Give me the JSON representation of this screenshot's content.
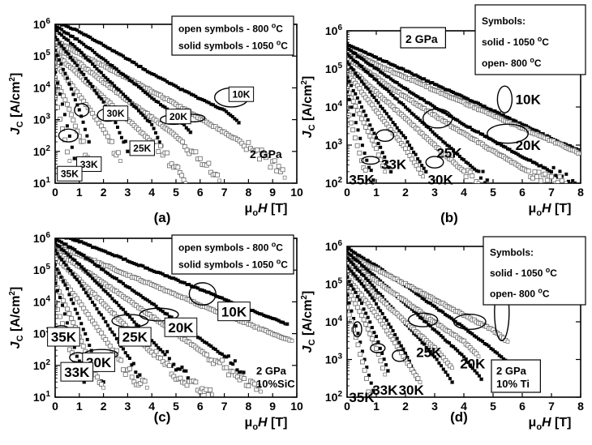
{
  "chart_data": [
    {
      "id": "a",
      "type": "scatter",
      "panel_label": "(a)",
      "condition": [
        "2 GPa"
      ],
      "condition_boxed": false,
      "legend": [
        "open symbols - 800 oC",
        "solid symbols - 1050 oC"
      ],
      "ylabel": "J_C [A/cm^2]",
      "xlabel": "μ_oH [T]",
      "xlim": [
        0,
        10
      ],
      "ylim": [
        10,
        1000000
      ],
      "y_scale": "log",
      "xticks": [
        0,
        1,
        2,
        3,
        4,
        5,
        6,
        7,
        8,
        9,
        10
      ],
      "yticks": [
        1,
        2,
        3,
        4,
        5,
        6
      ],
      "series": [
        {
          "temp": "10K",
          "anneal": "1050",
          "x": [
            0,
            1,
            2,
            3,
            4,
            5,
            6,
            7,
            7.6
          ],
          "y": [
            1200000,
            600000,
            220000,
            80000,
            28000,
            11000,
            4500,
            2000,
            800
          ]
        },
        {
          "temp": "10K",
          "anneal": "800",
          "x": [
            0,
            1,
            2,
            3,
            4,
            5,
            6,
            7,
            8,
            9,
            9.5
          ],
          "y": [
            300000,
            120000,
            50000,
            20000,
            8000,
            3000,
            1100,
            400,
            150,
            40,
            15
          ]
        },
        {
          "temp": "20K",
          "anneal": "1050",
          "x": [
            0,
            1,
            2,
            3,
            4,
            5,
            5.6
          ],
          "y": [
            900000,
            300000,
            80000,
            20000,
            5000,
            1300,
            400
          ]
        },
        {
          "temp": "20K",
          "anneal": "800",
          "x": [
            0,
            1,
            2,
            3,
            4,
            5,
            6,
            6.8
          ],
          "y": [
            200000,
            60000,
            15000,
            4000,
            1200,
            300,
            60,
            12
          ]
        },
        {
          "temp": "25K",
          "anneal": "1050",
          "x": [
            0,
            1,
            2,
            3,
            4,
            4.4
          ],
          "y": [
            700000,
            150000,
            25000,
            4500,
            700,
            150
          ]
        },
        {
          "temp": "25K",
          "anneal": "800",
          "x": [
            0,
            1,
            2,
            3,
            4,
            5,
            5.4
          ],
          "y": [
            120000,
            25000,
            5000,
            1000,
            200,
            30,
            10
          ]
        },
        {
          "temp": "30K",
          "anneal": "1050",
          "x": [
            0,
            1,
            2,
            2.5,
            3
          ],
          "y": [
            400000,
            40000,
            3500,
            800,
            100
          ]
        },
        {
          "temp": "30K",
          "anneal": "800",
          "x": [
            0,
            1,
            2,
            2.7
          ],
          "y": [
            60000,
            6000,
            500,
            50
          ]
        },
        {
          "temp": "33K",
          "anneal": "1050",
          "x": [
            0,
            0.5,
            1,
            1.4
          ],
          "y": [
            150000,
            20000,
            2000,
            200
          ]
        },
        {
          "temp": "33K",
          "anneal": "800",
          "x": [
            0,
            0.5,
            1,
            1.5
          ],
          "y": [
            20000,
            3000,
            300,
            30
          ]
        },
        {
          "temp": "35K",
          "anneal": "1050",
          "x": [
            0,
            0.3,
            0.6,
            0.8
          ],
          "y": [
            30000,
            3000,
            300,
            60
          ]
        },
        {
          "temp": "35K",
          "anneal": "800",
          "x": [
            0,
            0.3,
            0.6
          ],
          "y": [
            5000,
            500,
            50
          ]
        }
      ],
      "annotations": [
        "10K",
        "20K",
        "25K",
        "30K",
        "33K",
        "35K"
      ]
    },
    {
      "id": "b",
      "type": "scatter",
      "panel_label": "(b)",
      "condition": [
        "2 GPa"
      ],
      "condition_boxed": true,
      "legend": [
        "Symbols:",
        "solid - 1050 oC",
        "open- 800 oC"
      ],
      "ylabel": "J_C [A/cm^2]",
      "xlabel": "μ_oH [T]",
      "xlim": [
        0,
        8
      ],
      "ylim": [
        100,
        1000000
      ],
      "y_scale": "log",
      "xticks": [
        0,
        1,
        2,
        3,
        4,
        5,
        6,
        7,
        8
      ],
      "yticks": [
        2,
        3,
        4,
        5,
        6
      ],
      "series": [
        {
          "temp": "10K",
          "anneal": "1050",
          "x": [
            0,
            1,
            2,
            3,
            4,
            5,
            6,
            7,
            8
          ],
          "y": [
            450000,
            200000,
            90000,
            40000,
            18000,
            8000,
            3500,
            1500,
            700
          ]
        },
        {
          "temp": "10K",
          "anneal": "800",
          "x": [
            0,
            1,
            2,
            3,
            4,
            5,
            6,
            7,
            8
          ],
          "y": [
            300000,
            130000,
            60000,
            28000,
            13000,
            6000,
            2800,
            1300,
            600
          ]
        },
        {
          "temp": "20K",
          "anneal": "1050",
          "x": [
            0,
            1,
            2,
            3,
            4,
            5,
            6,
            7,
            7.8
          ],
          "y": [
            350000,
            100000,
            30000,
            10000,
            3500,
            1300,
            500,
            200,
            100
          ]
        },
        {
          "temp": "20K",
          "anneal": "800",
          "x": [
            0,
            1,
            2,
            3,
            4,
            5,
            6,
            7,
            7.5
          ],
          "y": [
            200000,
            60000,
            18000,
            6000,
            2000,
            700,
            250,
            110,
            100
          ]
        },
        {
          "temp": "25K",
          "anneal": "1050",
          "x": [
            0,
            1,
            2,
            3,
            4,
            4.8
          ],
          "y": [
            250000,
            50000,
            10000,
            2000,
            400,
            120
          ]
        },
        {
          "temp": "25K",
          "anneal": "800",
          "x": [
            0,
            1,
            2,
            3,
            4,
            4.5
          ],
          "y": [
            120000,
            25000,
            5000,
            1000,
            200,
            100
          ]
        },
        {
          "temp": "30K",
          "anneal": "1050",
          "x": [
            0,
            1,
            2,
            2.7
          ],
          "y": [
            150000,
            15000,
            1500,
            200
          ]
        },
        {
          "temp": "30K",
          "anneal": "800",
          "x": [
            0,
            1,
            2,
            2.6
          ],
          "y": [
            80000,
            8000,
            800,
            150
          ]
        },
        {
          "temp": "33K",
          "anneal": "1050",
          "x": [
            0,
            0.5,
            1,
            1.5
          ],
          "y": [
            60000,
            10000,
            1500,
            200
          ]
        },
        {
          "temp": "33K",
          "anneal": "800",
          "x": [
            0,
            0.5,
            1,
            1.3
          ],
          "y": [
            30000,
            5000,
            800,
            200
          ]
        },
        {
          "temp": "35K",
          "anneal": "1050",
          "x": [
            0,
            0.3,
            0.6,
            0.9
          ],
          "y": [
            25000,
            4000,
            600,
            120
          ]
        },
        {
          "temp": "35K",
          "anneal": "800",
          "x": [
            0,
            0.2,
            0.5,
            0.7
          ],
          "y": [
            10000,
            2500,
            400,
            100
          ]
        }
      ],
      "annotations": [
        "10K",
        "20K",
        "25K",
        "30K",
        "33K",
        "35K"
      ]
    },
    {
      "id": "c",
      "type": "scatter",
      "panel_label": "(c)",
      "condition": [
        "2 GPa",
        "10%SiC"
      ],
      "condition_boxed": false,
      "legend": [
        "open symbols - 800 oC",
        "solid symbols - 1050 oC"
      ],
      "ylabel": "J_C [A/cm^2]",
      "xlabel": "μ_oH [T]",
      "xlim": [
        0,
        10
      ],
      "ylim": [
        10,
        1000000
      ],
      "y_scale": "log",
      "xticks": [
        0,
        1,
        2,
        3,
        4,
        5,
        6,
        7,
        8,
        9,
        10
      ],
      "yticks": [
        1,
        2,
        3,
        4,
        5,
        6
      ],
      "series": [
        {
          "temp": "10K",
          "anneal": "1050",
          "x": [
            0,
            1,
            2,
            3,
            4,
            5,
            6,
            7,
            8,
            9,
            9.6
          ],
          "y": [
            1300000,
            800000,
            400000,
            200000,
            100000,
            50000,
            25000,
            12000,
            6000,
            3000,
            2000
          ]
        },
        {
          "temp": "10K",
          "anneal": "800",
          "x": [
            0,
            1,
            2,
            3,
            4,
            5,
            6,
            7,
            8,
            9,
            9.8
          ],
          "y": [
            600000,
            300000,
            150000,
            70000,
            35000,
            17000,
            8000,
            4000,
            2000,
            1000,
            600
          ]
        },
        {
          "temp": "20K",
          "anneal": "1050",
          "x": [
            0,
            1,
            2,
            3,
            4,
            5,
            6,
            7,
            7.8
          ],
          "y": [
            1000000,
            350000,
            100000,
            30000,
            9000,
            2500,
            700,
            200,
            60
          ]
        },
        {
          "temp": "20K",
          "anneal": "800",
          "x": [
            0,
            1,
            2,
            3,
            4,
            5,
            6,
            7,
            8,
            8.5
          ],
          "y": [
            400000,
            130000,
            40000,
            12000,
            3500,
            1000,
            300,
            90,
            30,
            15
          ]
        },
        {
          "temp": "25K",
          "anneal": "1050",
          "x": [
            0,
            1,
            2,
            3,
            4,
            5,
            5.5
          ],
          "y": [
            700000,
            150000,
            25000,
            4000,
            600,
            100,
            40
          ]
        },
        {
          "temp": "25K",
          "anneal": "800",
          "x": [
            0,
            1,
            2,
            3,
            4,
            5,
            6,
            6.5
          ],
          "y": [
            250000,
            50000,
            9000,
            1500,
            250,
            50,
            20,
            12
          ]
        },
        {
          "temp": "30K",
          "anneal": "1050",
          "x": [
            0,
            1,
            2,
            3,
            3.5
          ],
          "y": [
            400000,
            40000,
            3000,
            200,
            50
          ]
        },
        {
          "temp": "30K",
          "anneal": "800",
          "x": [
            0,
            1,
            2,
            3,
            3.8
          ],
          "y": [
            100000,
            10000,
            800,
            60,
            20
          ]
        },
        {
          "temp": "33K",
          "anneal": "1050",
          "x": [
            0,
            0.5,
            1,
            1.5,
            2
          ],
          "y": [
            150000,
            25000,
            3000,
            300,
            30
          ]
        },
        {
          "temp": "33K",
          "anneal": "800",
          "x": [
            0,
            0.5,
            1,
            1.5,
            2
          ],
          "y": [
            40000,
            6000,
            800,
            100,
            20
          ]
        },
        {
          "temp": "35K",
          "anneal": "1050",
          "x": [
            0,
            0.3,
            0.6,
            0.9,
            1.2
          ],
          "y": [
            40000,
            8000,
            1200,
            200,
            30
          ]
        },
        {
          "temp": "35K",
          "anneal": "800",
          "x": [
            0,
            0.3,
            0.6,
            0.9
          ],
          "y": [
            10000,
            2000,
            300,
            50
          ]
        }
      ],
      "annotations": [
        "10K",
        "20K",
        "25K",
        "30K",
        "33K",
        "35K"
      ]
    },
    {
      "id": "d",
      "type": "scatter",
      "panel_label": "(d)",
      "condition": [
        "2 GPa",
        "10% Ti"
      ],
      "condition_boxed": true,
      "legend": [
        "Symbols:",
        "solid - 1050 oC",
        "open- 800 oC"
      ],
      "ylabel": "J_C [A/cm^2]",
      "xlabel": "μ_oH [T]",
      "xlim": [
        0,
        8
      ],
      "ylim": [
        100,
        1000000
      ],
      "y_scale": "log",
      "xticks": [
        0,
        1,
        2,
        3,
        4,
        5,
        6,
        7,
        8
      ],
      "yticks": [
        2,
        3,
        4,
        5,
        6
      ],
      "series": [
        {
          "temp": "10K",
          "anneal": "1050",
          "x": [
            0,
            1,
            2,
            3,
            4,
            5,
            6,
            6.5
          ],
          "y": [
            900000,
            300000,
            90000,
            25000,
            7000,
            1800,
            400,
            150
          ]
        },
        {
          "temp": "10K",
          "anneal": "800",
          "x": [
            0,
            1,
            2,
            3,
            4,
            5,
            5.5
          ],
          "y": [
            600000,
            250000,
            100000,
            40000,
            15000,
            6000,
            3000
          ]
        },
        {
          "temp": "20K",
          "anneal": "1050",
          "x": [
            0,
            1,
            2,
            3,
            4,
            4.6
          ],
          "y": [
            700000,
            150000,
            30000,
            6000,
            1200,
            300
          ]
        },
        {
          "temp": "20K",
          "anneal": "800",
          "x": [
            0,
            1,
            2,
            3,
            4,
            4.5
          ],
          "y": [
            400000,
            120000,
            35000,
            10000,
            3000,
            1200
          ]
        },
        {
          "temp": "25K",
          "anneal": "1050",
          "x": [
            0,
            1,
            2,
            3,
            3.6
          ],
          "y": [
            500000,
            70000,
            9000,
            1200,
            250
          ]
        },
        {
          "temp": "25K",
          "anneal": "800",
          "x": [
            0,
            1,
            2,
            3,
            3.6
          ],
          "y": [
            250000,
            50000,
            10000,
            2000,
            600
          ]
        },
        {
          "temp": "30K",
          "anneal": "1050",
          "x": [
            0,
            0.5,
            1,
            1.5,
            2,
            2.4
          ],
          "y": [
            300000,
            100000,
            30000,
            7000,
            1500,
            300
          ]
        },
        {
          "temp": "30K",
          "anneal": "800",
          "x": [
            0,
            0.5,
            1,
            1.5,
            2,
            2.5
          ],
          "y": [
            150000,
            50000,
            15000,
            4000,
            1000,
            250
          ]
        },
        {
          "temp": "33K",
          "anneal": "1050",
          "x": [
            0,
            0.5,
            1,
            1.4
          ],
          "y": [
            150000,
            30000,
            4000,
            500
          ]
        },
        {
          "temp": "33K",
          "anneal": "800",
          "x": [
            0,
            0.5,
            1,
            1.3
          ],
          "y": [
            80000,
            15000,
            2000,
            400
          ]
        },
        {
          "temp": "35K",
          "anneal": "1050",
          "x": [
            0,
            0.3,
            0.6,
            0.9
          ],
          "y": [
            50000,
            8000,
            1000,
            150
          ]
        },
        {
          "temp": "35K",
          "anneal": "800",
          "x": [
            0,
            0.3,
            0.6,
            0.8
          ],
          "y": [
            25000,
            4000,
            500,
            120
          ]
        }
      ],
      "annotations": [
        "10K",
        "20K",
        "25K",
        "30K",
        "33K",
        "35K"
      ]
    }
  ]
}
